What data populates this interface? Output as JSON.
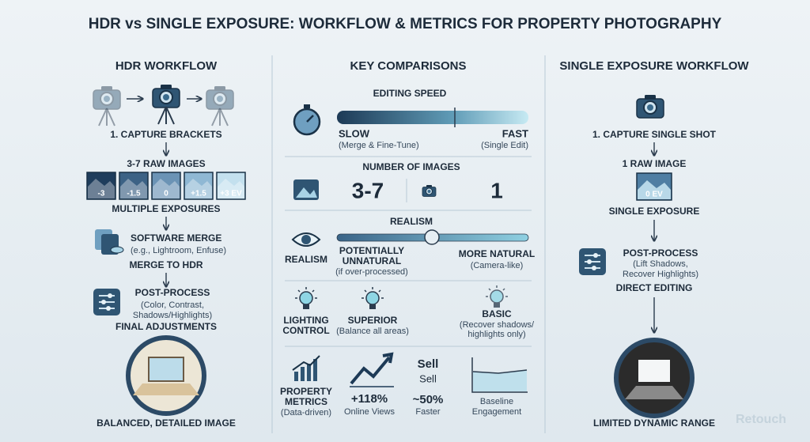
{
  "title": "HDR vs SINGLE EXPOSURE: WORKFLOW & METRICS FOR PROPERTY PHOTOGRAPHY",
  "hdr": {
    "heading": "HDR WORKFLOW",
    "step1": "1. CAPTURE BRACKETS",
    "raw": "3-7 RAW IMAGES",
    "exposures": [
      "-3",
      "-1.5",
      "0",
      "+1.5",
      "+3 EV"
    ],
    "multiple": "MULTIPLE EXPOSURES",
    "merge_title": "SOFTWARE MERGE",
    "merge_note": "(e.g., Lightroom, Enfuse)",
    "merge_label": "MERGE TO HDR",
    "post_title": "POST-PROCESS",
    "post_note": [
      "(Color, Contrast,",
      "Shadows/Highlights)"
    ],
    "final": "FINAL ADJUSTMENTS",
    "result": "BALANCED, DETAILED IMAGE"
  },
  "comparisons": {
    "heading": "KEY COMPARISONS",
    "speed": {
      "title": "EDITING SPEED",
      "slow": "SLOW",
      "slow_note": "(Merge & Fine-Tune)",
      "fast": "FAST",
      "fast_note": "(Single Edit)"
    },
    "images": {
      "title": "NUMBER OF IMAGES",
      "hdr": "3-7",
      "single": "1"
    },
    "realism": {
      "title": "REALISM",
      "label": "REALISM",
      "hdr": [
        "POTENTIALLY",
        "UNNATURAL"
      ],
      "hdr_note": "(if over-processed)",
      "single": "MORE NATURAL",
      "single_note": "(Camera-like)"
    },
    "lighting": {
      "label": [
        "LIGHTING",
        "CONTROL"
      ],
      "hdr": "SUPERIOR",
      "hdr_note": "(Balance all areas)",
      "single": "BASIC",
      "single_note": [
        "(Recover shadows/",
        "highlights only)"
      ]
    },
    "metrics": {
      "label": [
        "PROPERTY",
        "METRICS",
        "(Data-driven)"
      ],
      "views": "+118%",
      "views_note": "Online Views",
      "sell": [
        "Sell",
        "Sell"
      ],
      "faster": "~50%",
      "faster_note": "Faster",
      "baseline": [
        "Baseline",
        "Engagement"
      ]
    }
  },
  "single": {
    "heading": "SINGLE EXPOSURE WORKFLOW",
    "step1": "1. CAPTURE SINGLE SHOT",
    "raw": "1 RAW IMAGE",
    "exposure": "0 EV",
    "single": "SINGLE EXPOSURE",
    "post_title": "POST-PROCESS",
    "post_note": [
      "(Lift Shadows,",
      "Recover Highlights)"
    ],
    "direct": "DIRECT EDITING",
    "result": "LIMITED DYNAMIC RANGE"
  },
  "watermark": "Retouch"
}
